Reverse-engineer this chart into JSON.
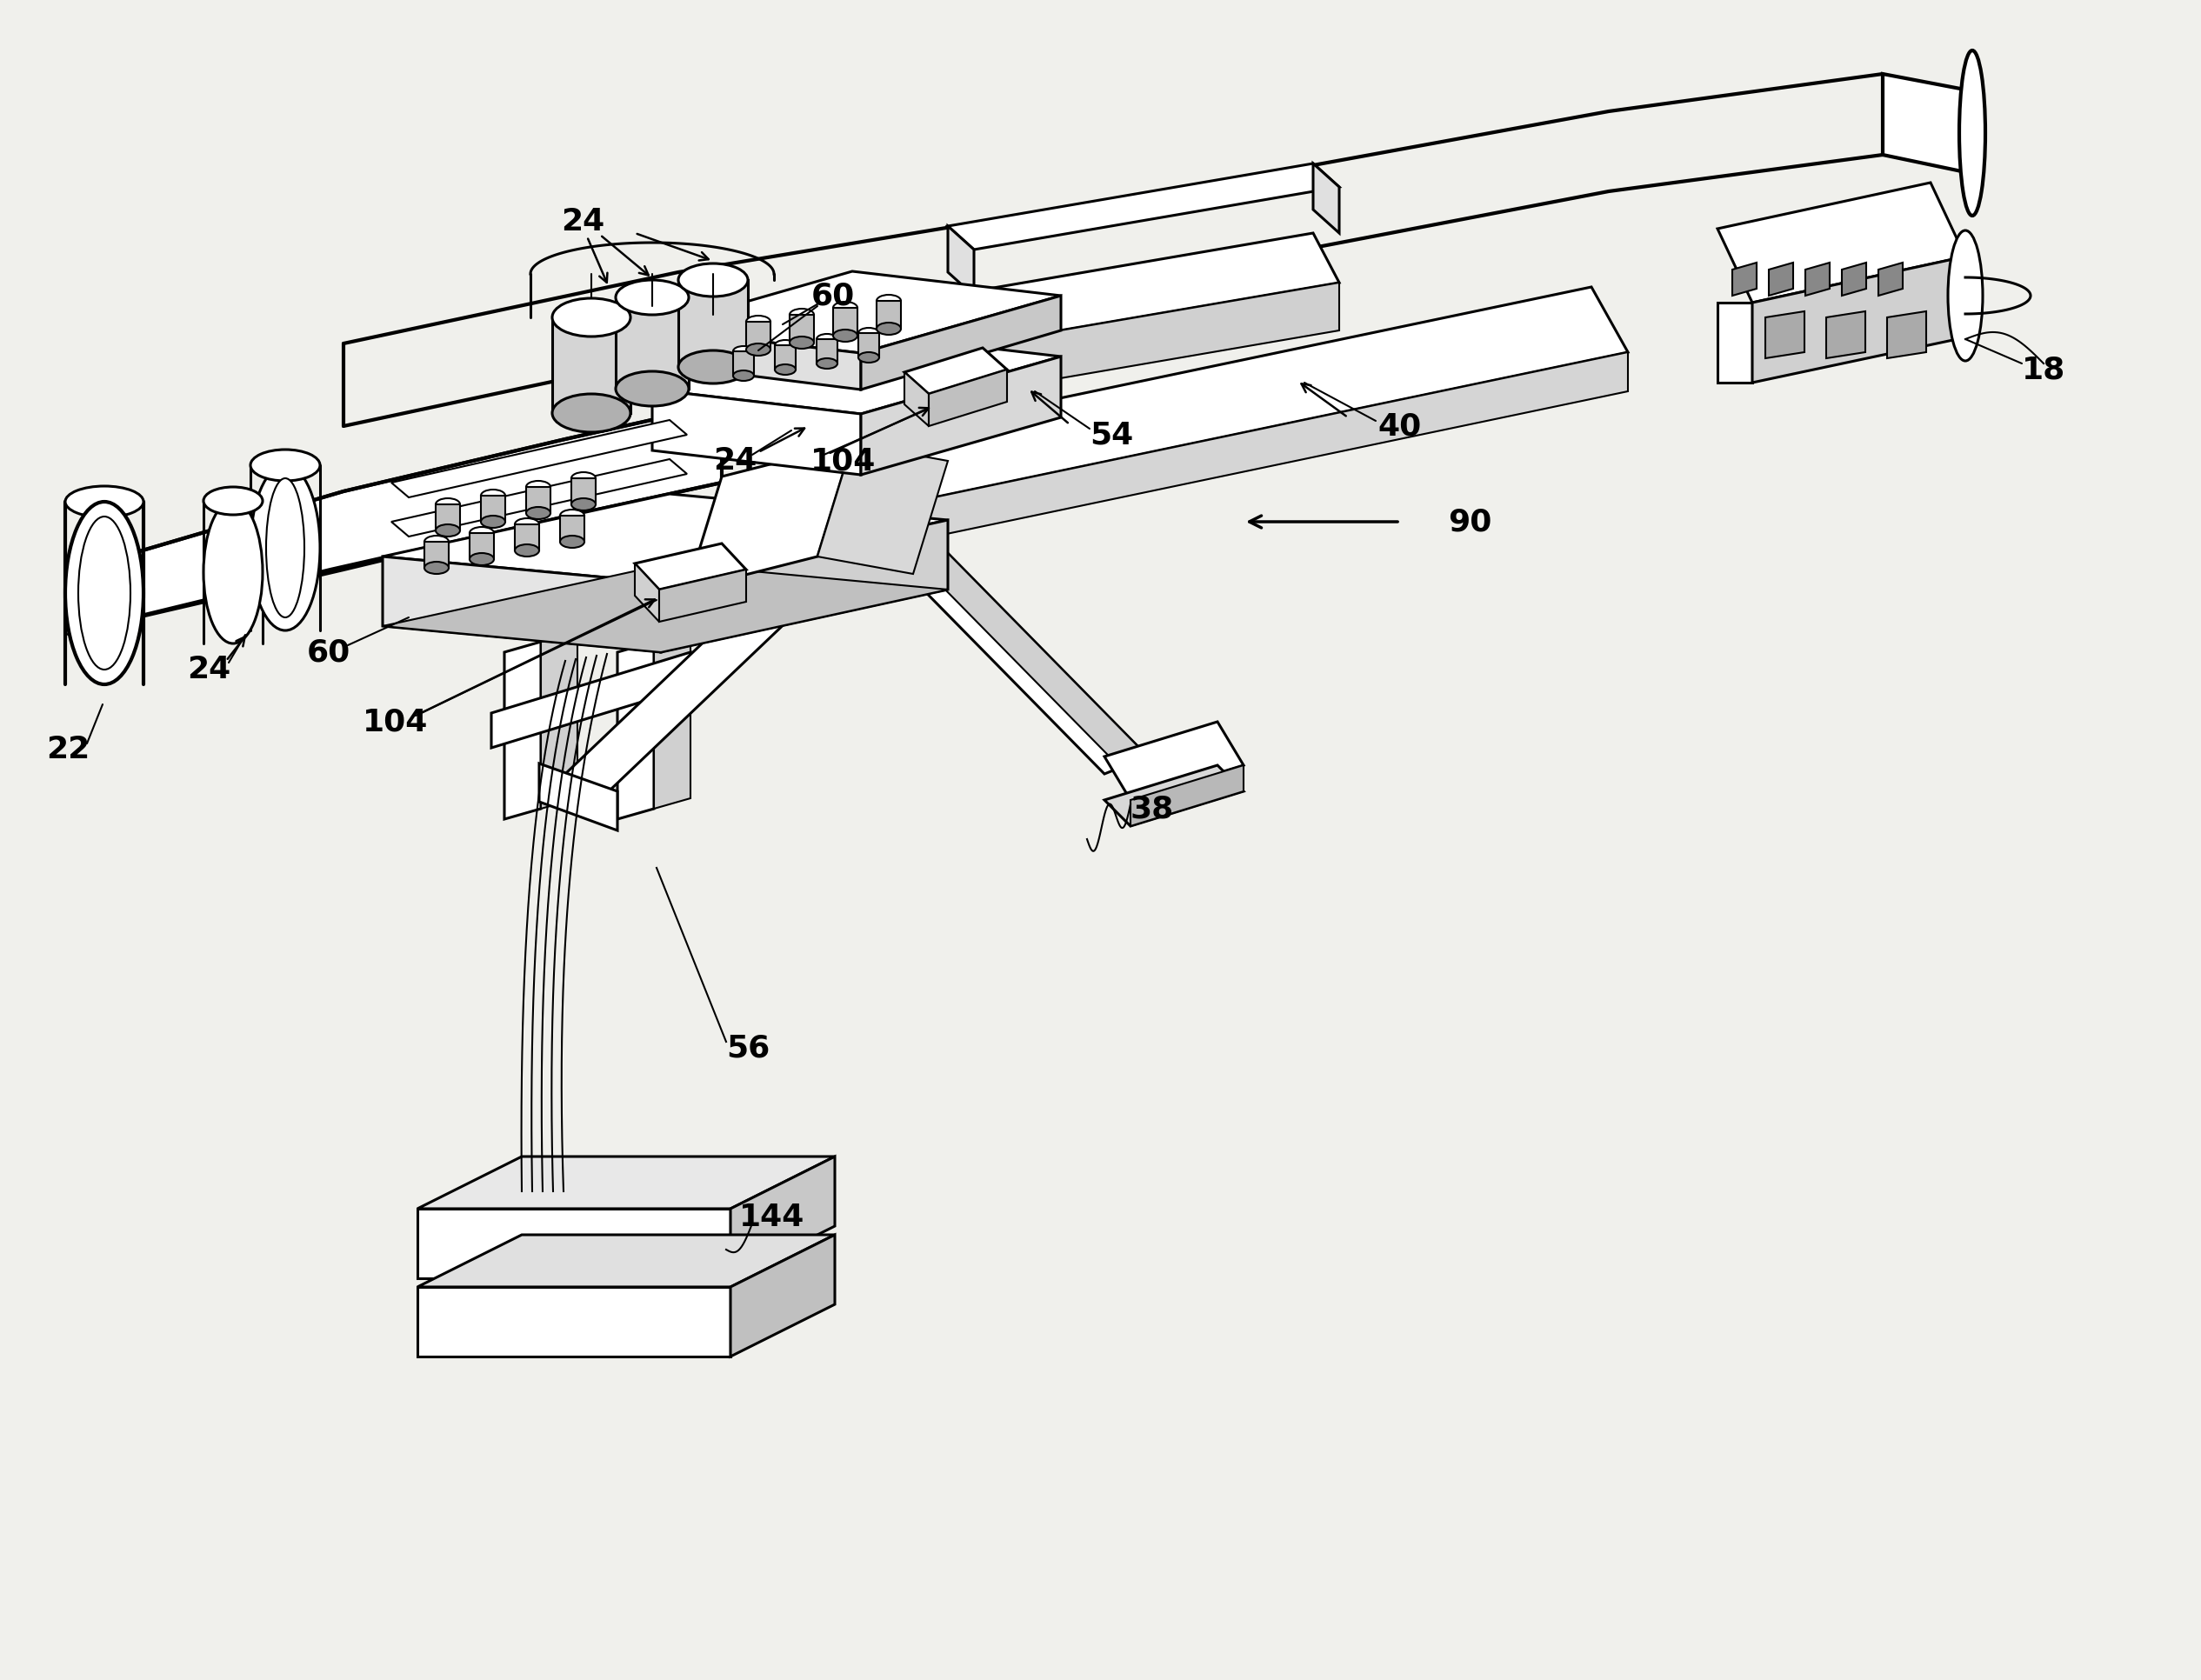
{
  "bg_color": "#f0f0ec",
  "lw": 2.2,
  "lw_thin": 1.5,
  "lw_thick": 3.0,
  "label_fs": 26
}
